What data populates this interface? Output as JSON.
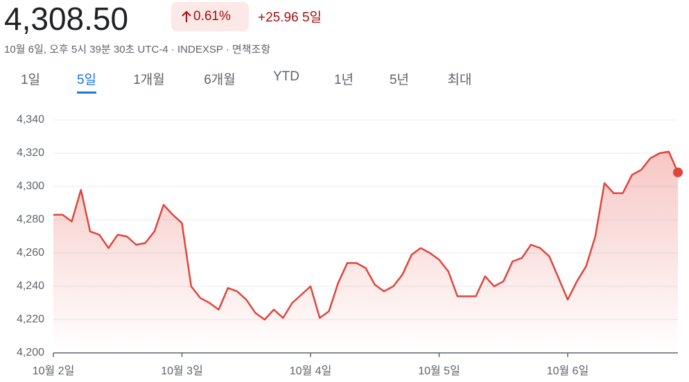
{
  "header": {
    "price": "4,308.50",
    "change_percent": "0.61%",
    "change": "+25.96",
    "period": "5일",
    "subtitle": "10월 6일, 오후 5시 39분 30초 UTC-4 · INDEXSP · 면책조항"
  },
  "tabs": {
    "items": [
      "1일",
      "5일",
      "1개월",
      "6개월",
      "YTD",
      "1년",
      "5년",
      "최대"
    ],
    "selected": 1
  },
  "chart_data": {
    "type": "line",
    "color": "#e0443a",
    "grid": true,
    "categories": [
      "10월 2일",
      null,
      null,
      null,
      null,
      null,
      null,
      null,
      null,
      null,
      null,
      null,
      null,
      null,
      "10월 3일",
      null,
      null,
      null,
      null,
      null,
      null,
      null,
      null,
      null,
      null,
      null,
      null,
      null,
      "10월 4일",
      null,
      null,
      null,
      null,
      null,
      null,
      null,
      null,
      null,
      null,
      null,
      null,
      null,
      "10월 5일",
      null,
      null,
      null,
      null,
      null,
      null,
      null,
      null,
      null,
      null,
      null,
      null,
      null,
      "10월 6일",
      null,
      null,
      null,
      null,
      null,
      null,
      null,
      null,
      null,
      null,
      null,
      null
    ],
    "values": [
      4283,
      4283,
      4279,
      4298,
      4273,
      4271,
      4263,
      4271,
      4270,
      4265,
      4266,
      4273,
      4289,
      4283,
      4278,
      4240,
      4233,
      4230,
      4226,
      4239,
      4237,
      4232,
      4224,
      4220,
      4226,
      4221,
      4230,
      4235,
      4240,
      4221,
      4225,
      4242,
      4254,
      4254,
      4251,
      4241,
      4237,
      4240,
      4247,
      4259,
      4263,
      4260,
      4256,
      4249,
      4234,
      4234,
      4234,
      4246,
      4240,
      4243,
      4255,
      4257,
      4265,
      4263,
      4258,
      4245,
      4232,
      4243,
      4252,
      4270,
      4302,
      4296,
      4296,
      4307,
      4310,
      4317,
      4320,
      4321,
      4308.5
    ],
    "ylim": [
      4200,
      4340
    ],
    "yticks": [
      {
        "value": 4200,
        "label": "4,200"
      },
      {
        "value": 4220,
        "label": "4,220"
      },
      {
        "value": 4240,
        "label": "4,240"
      },
      {
        "value": 4260,
        "label": "4,260"
      },
      {
        "value": 4280,
        "label": "4,280"
      },
      {
        "value": 4300,
        "label": "4,300"
      },
      {
        "value": 4320,
        "label": "4,320"
      },
      {
        "value": 4340,
        "label": "4,340"
      }
    ]
  }
}
